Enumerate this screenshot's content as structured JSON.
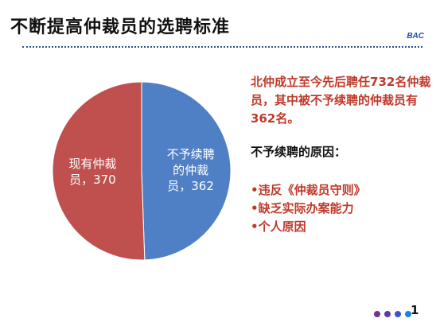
{
  "slide": {
    "title": "不断提高仲裁员的选聘标准",
    "brand": "BAC",
    "page_number": "1"
  },
  "intro": {
    "part1": "北仲成立至今先后聘任",
    "total": "732",
    "part2": "名仲裁员，其中被不予续聘的仲裁员有",
    "not_renewed": "362",
    "part3": "名。"
  },
  "reasons": {
    "heading": "不予续聘的原因：",
    "items": [
      "•违反《仲裁员守则》",
      "•缺乏实际办案能力",
      "•个人原因"
    ]
  },
  "chart_data": {
    "type": "pie",
    "slices": [
      {
        "label_line1": "不予续聘",
        "label_line2": "的仲裁",
        "label_line3": "员，362",
        "value": 362,
        "color": "#4f7fc4"
      },
      {
        "label_line1": "现有仲裁",
        "label_line2": "员，370",
        "value": 370,
        "color": "#c0504d"
      }
    ],
    "label_color": "#ffffff"
  },
  "colors": {
    "accent_red": "#c0392b",
    "brand_blue": "#1f4e9e",
    "dots": [
      "#7a2f8f",
      "#5a3aa6",
      "#3b55c8",
      "#1f84d6"
    ]
  }
}
